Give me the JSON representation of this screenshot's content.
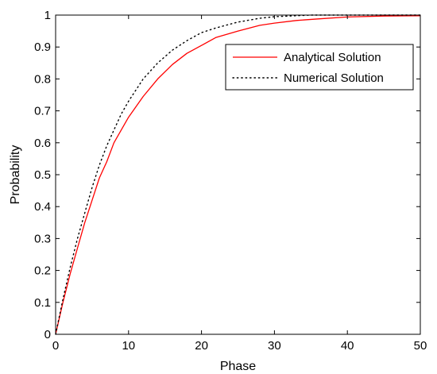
{
  "chart_data": {
    "type": "line",
    "title": "",
    "xlabel": "Phase",
    "ylabel": "Probability",
    "xlim": [
      0,
      50
    ],
    "ylim": [
      0,
      1
    ],
    "xticks": [
      0,
      10,
      20,
      30,
      40,
      50
    ],
    "yticks": [
      0,
      0.1,
      0.2,
      0.3,
      0.4,
      0.5,
      0.6,
      0.7,
      0.8,
      0.9,
      1
    ],
    "xtick_labels": [
      "0",
      "10",
      "20",
      "30",
      "40",
      "50"
    ],
    "ytick_labels": [
      "0",
      "0.1",
      "0.2",
      "0.3",
      "0.4",
      "0.5",
      "0.6",
      "0.7",
      "0.8",
      "0.9",
      "1"
    ],
    "grid": false,
    "legend_position": "top-right",
    "series": [
      {
        "name": "Analytical Solution",
        "color": "#ff0000",
        "style": "solid",
        "x": [
          0,
          1,
          2,
          3,
          4,
          5,
          6,
          7,
          8,
          9,
          10,
          12,
          14,
          16,
          18,
          20,
          22,
          25,
          28,
          30,
          33,
          36,
          40,
          45,
          50
        ],
        "y": [
          0,
          0.1,
          0.19,
          0.27,
          0.35,
          0.42,
          0.49,
          0.54,
          0.6,
          0.64,
          0.68,
          0.745,
          0.8,
          0.845,
          0.88,
          0.905,
          0.93,
          0.95,
          0.968,
          0.975,
          0.983,
          0.988,
          0.994,
          0.997,
          0.998
        ]
      },
      {
        "name": "Numerical Solution",
        "color": "#000000",
        "style": "dotted",
        "x": [
          0,
          1,
          2,
          3,
          4,
          5,
          6,
          7,
          8,
          9,
          10,
          12,
          14,
          16,
          18,
          20,
          22,
          25,
          28,
          30,
          33,
          35,
          40,
          45,
          50
        ],
        "y": [
          0,
          0.11,
          0.21,
          0.3,
          0.38,
          0.46,
          0.53,
          0.59,
          0.64,
          0.69,
          0.73,
          0.8,
          0.85,
          0.89,
          0.92,
          0.945,
          0.96,
          0.978,
          0.99,
          0.995,
          0.998,
          1,
          1,
          1,
          1
        ]
      }
    ]
  }
}
